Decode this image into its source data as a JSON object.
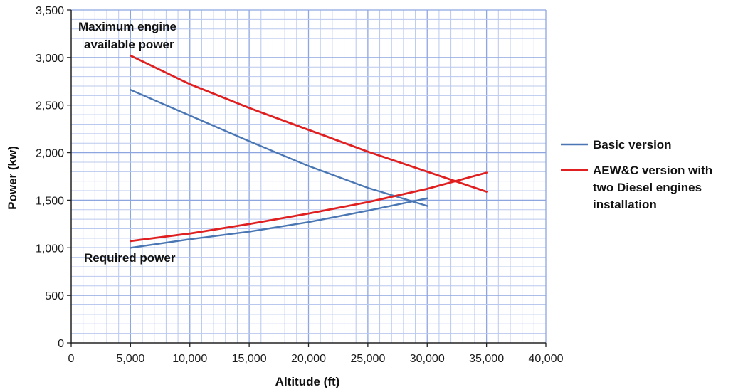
{
  "chart_data": {
    "type": "line",
    "xlabel": "Altitude (ft)",
    "ylabel": "Power (kw)",
    "xlim": [
      0,
      40000
    ],
    "ylim": [
      0,
      3500
    ],
    "x_ticks": [
      "0",
      "5,000",
      "10,000",
      "15,000",
      "20,000",
      "25,000",
      "30,000",
      "35,000",
      "40,000"
    ],
    "y_ticks": [
      "0",
      "500",
      "1,000",
      "1,500",
      "2,000",
      "2,500",
      "3,000",
      "3,500"
    ],
    "grid": true,
    "legend_position": "right",
    "annotations": {
      "available_line1": "Maximum engine",
      "available_line2": "available power",
      "required": "Required power"
    },
    "series": [
      {
        "name": "Basic version",
        "color": "#4a77b4",
        "available": {
          "x": [
            5000,
            10000,
            15000,
            20000,
            25000,
            30000
          ],
          "y": [
            2660,
            2390,
            2120,
            1860,
            1630,
            1440
          ]
        },
        "required": {
          "x": [
            5000,
            10000,
            15000,
            20000,
            25000,
            30000
          ],
          "y": [
            1000,
            1090,
            1170,
            1270,
            1390,
            1520
          ]
        }
      },
      {
        "name": "AEW&C version with two Diesel engines installation",
        "color": "#e02020",
        "available": {
          "x": [
            5000,
            10000,
            15000,
            20000,
            25000,
            30000,
            35000
          ],
          "y": [
            3020,
            2720,
            2470,
            2240,
            2010,
            1800,
            1590
          ]
        },
        "required": {
          "x": [
            5000,
            10000,
            15000,
            20000,
            25000,
            30000,
            35000
          ],
          "y": [
            1070,
            1150,
            1250,
            1360,
            1480,
            1620,
            1790
          ]
        }
      }
    ],
    "legend": [
      {
        "color": "#4a77b4",
        "lines": [
          "Basic version"
        ]
      },
      {
        "color": "#e02020",
        "lines": [
          "AEW&C version with",
          "two Diesel engines",
          "installation"
        ]
      }
    ]
  }
}
